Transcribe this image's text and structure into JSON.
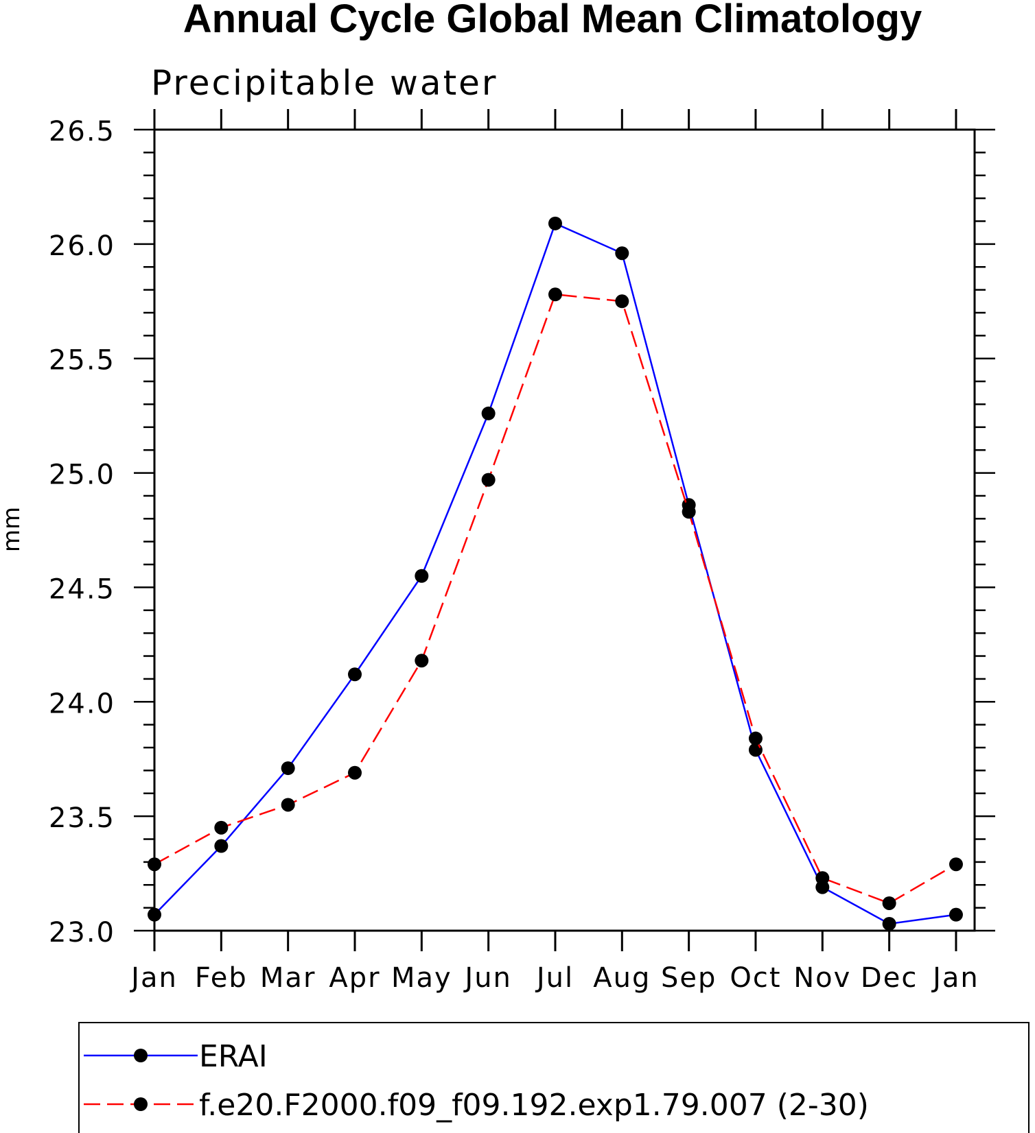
{
  "chart_data": {
    "type": "line",
    "title": "Annual Cycle Global Mean Climatology",
    "subtitle": "Precipitable water",
    "xlabel": "",
    "ylabel": "mm",
    "categories": [
      "Jan",
      "Feb",
      "Mar",
      "Apr",
      "May",
      "Jun",
      "Jul",
      "Aug",
      "Sep",
      "Oct",
      "Nov",
      "Dec",
      "Jan"
    ],
    "ylim": [
      23.0,
      26.5
    ],
    "yticks": [
      "23.0",
      "23.5",
      "24.0",
      "24.5",
      "25.0",
      "25.5",
      "26.0",
      "26.5"
    ],
    "grid": false,
    "legend_position": "bottom",
    "series": [
      {
        "name": "ERAI",
        "color": "#0000ff",
        "line_style": "solid",
        "marker": "filled-circle",
        "values": [
          23.07,
          23.37,
          23.71,
          24.12,
          24.55,
          25.26,
          26.09,
          25.96,
          24.86,
          23.79,
          23.19,
          23.03,
          23.07
        ]
      },
      {
        "name": "f.e20.F2000.f09_f09.192.exp1.79.007 (2-30)",
        "color": "#ff0000",
        "line_style": "dashed",
        "marker": "filled-circle",
        "values": [
          23.29,
          23.45,
          23.55,
          23.69,
          24.18,
          24.97,
          25.78,
          25.75,
          24.83,
          23.84,
          23.23,
          23.12,
          23.29
        ]
      }
    ]
  }
}
